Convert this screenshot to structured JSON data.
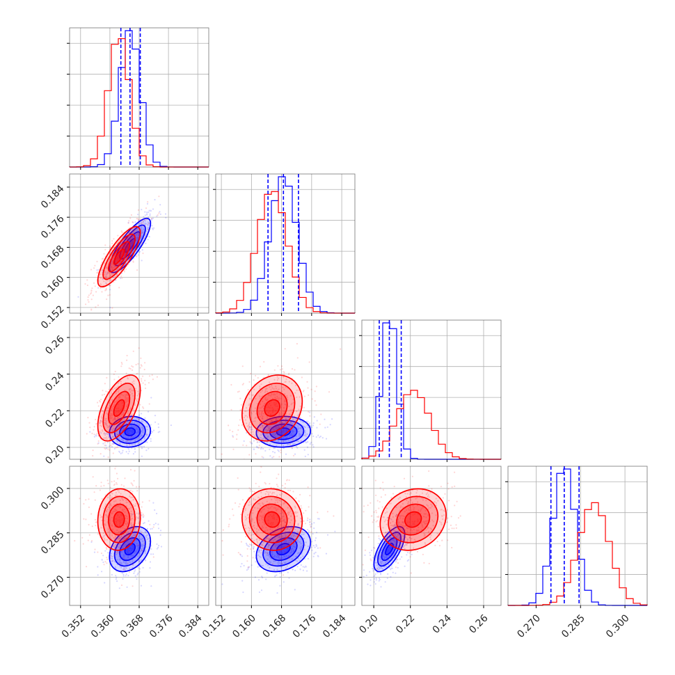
{
  "chart_data": {
    "type": "corner",
    "title": "",
    "grid": true,
    "colors": {
      "series_a": "#0000ff",
      "series_b": "#ff0000",
      "quantile_line": "#0000ff"
    },
    "series": [
      {
        "color": "#0000ff",
        "means": [
          0.3655,
          0.1685,
          0.2085,
          0.2795
        ],
        "sds": [
          0.0028,
          0.0036,
          0.0042,
          0.0038
        ],
        "corr": {
          "0-1": 0.82,
          "0-2": 0.08,
          "0-3": 0.35,
          "1-2": 0.06,
          "1-3": 0.3,
          "2-3": 0.65
        }
      },
      {
        "color": "#ff0000",
        "means": [
          0.3625,
          0.1655,
          0.2215,
          0.2895
        ],
        "sds": [
          0.0029,
          0.004,
          0.009,
          0.0052
        ],
        "corr": {
          "0-1": 0.8,
          "0-2": 0.55,
          "0-3": 0.05,
          "1-2": 0.2,
          "1-3": -0.05,
          "2-3": 0.15
        }
      }
    ],
    "quantiles": [
      [
        0.363,
        0.3655,
        0.3683
      ],
      [
        0.1644,
        0.1685,
        0.1725
      ],
      [
        0.203,
        0.2085,
        0.215
      ],
      [
        0.275,
        0.2795,
        0.2845
      ]
    ],
    "params": [
      {
        "range": [
          0.349,
          0.387
        ],
        "ticks": [
          0.352,
          0.36,
          0.368,
          0.376,
          0.384
        ],
        "tick_labels": [
          "0.352",
          "0.360",
          "0.368",
          "0.376",
          "0.384"
        ]
      },
      {
        "range": [
          0.1505,
          0.1875
        ],
        "ticks": [
          0.152,
          0.16,
          0.168,
          0.176,
          0.184
        ],
        "tick_labels": [
          "0.152",
          "0.160",
          "0.168",
          "0.176",
          "0.184"
        ]
      },
      {
        "range": [
          0.1935,
          0.2695
        ],
        "ticks": [
          0.2,
          0.22,
          0.24,
          0.26
        ],
        "tick_labels": [
          "0.20",
          "0.22",
          "0.24",
          "0.26"
        ]
      },
      {
        "range": [
          0.2605,
          0.3075
        ],
        "ticks": [
          0.27,
          0.285,
          0.3
        ],
        "tick_labels": [
          "0.270",
          "0.285",
          "0.300"
        ]
      }
    ]
  }
}
